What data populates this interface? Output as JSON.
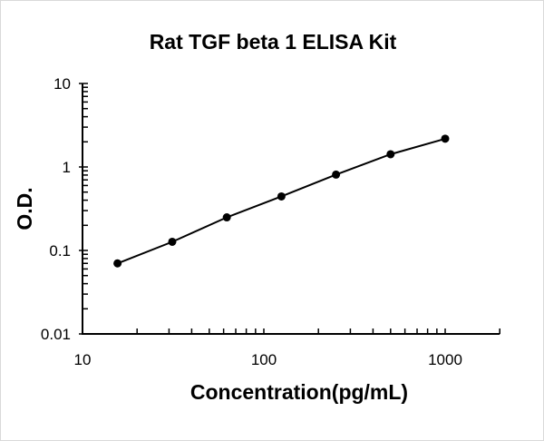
{
  "chart_data": {
    "type": "line",
    "title": "Rat TGF beta 1 ELISA Kit",
    "xlabel": "Concentration(pg/mL)",
    "ylabel": "O.D.",
    "x_scale": "log",
    "y_scale": "log",
    "xlim": [
      10,
      2000
    ],
    "ylim": [
      0.01,
      10
    ],
    "x_ticks": [
      10,
      100,
      1000
    ],
    "x_tick_labels": [
      "10",
      "100",
      "1000"
    ],
    "y_ticks": [
      0.01,
      0.1,
      1,
      10
    ],
    "y_tick_labels": [
      "0.01",
      "0.1",
      "1",
      "10"
    ],
    "grid": false,
    "markers": true,
    "line_color": "#000000",
    "series": [
      {
        "x": [
          15.6,
          31.25,
          62.5,
          125,
          250,
          500,
          1000
        ],
        "y": [
          0.07,
          0.127,
          0.249,
          0.444,
          0.81,
          1.42,
          2.18
        ]
      }
    ]
  }
}
